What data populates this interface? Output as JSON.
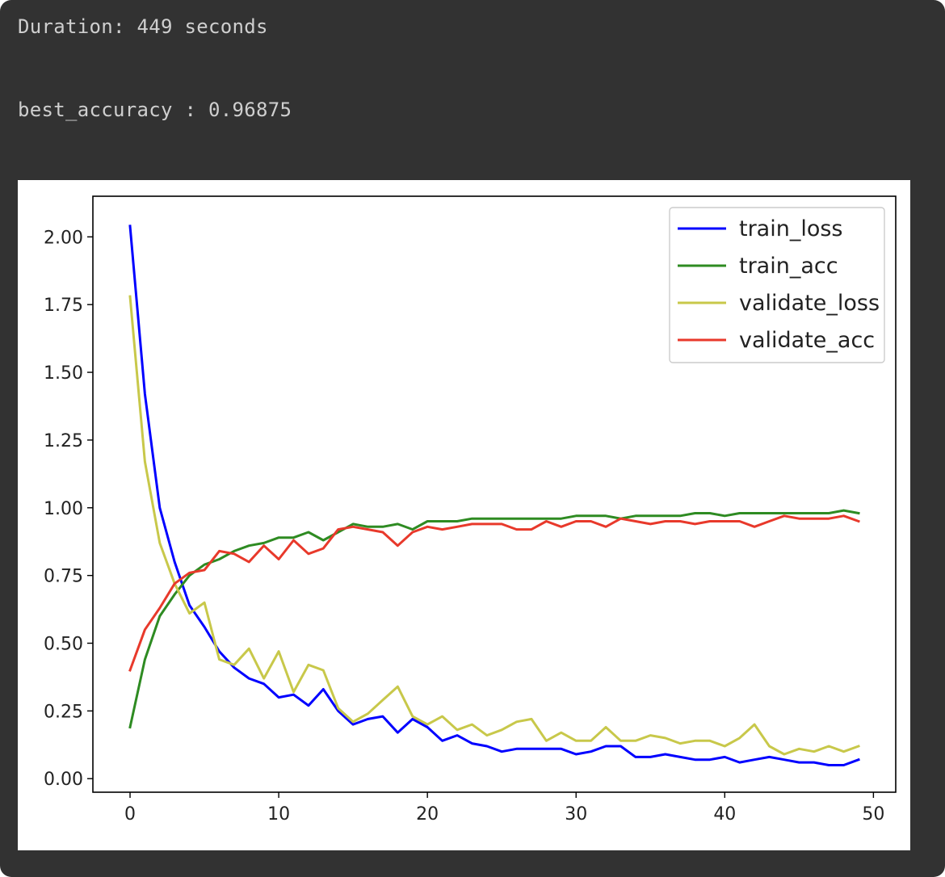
{
  "output": {
    "duration_line": "Duration: 449 seconds",
    "best_accuracy_line": "best_accuracy : 0.96875"
  },
  "chart_data": {
    "type": "line",
    "title": "",
    "xlabel": "",
    "ylabel": "",
    "xlim": [
      -2.5,
      51.5
    ],
    "ylim": [
      -0.05,
      2.15
    ],
    "xticks": [
      0,
      10,
      20,
      30,
      40,
      50
    ],
    "yticks": [
      0.0,
      0.25,
      0.5,
      0.75,
      1.0,
      1.25,
      1.5,
      1.75,
      2.0
    ],
    "xtick_labels": [
      "0",
      "10",
      "20",
      "30",
      "40",
      "50"
    ],
    "ytick_labels": [
      "0.00",
      "0.25",
      "0.50",
      "0.75",
      "1.00",
      "1.25",
      "1.50",
      "1.75",
      "2.00"
    ],
    "grid": false,
    "legend_position": "top-right",
    "x": [
      0,
      1,
      2,
      3,
      4,
      5,
      6,
      7,
      8,
      9,
      10,
      11,
      12,
      13,
      14,
      15,
      16,
      17,
      18,
      19,
      20,
      21,
      22,
      23,
      24,
      25,
      26,
      27,
      28,
      29,
      30,
      31,
      32,
      33,
      34,
      35,
      36,
      37,
      38,
      39,
      40,
      41,
      42,
      43,
      44,
      45,
      46,
      47,
      48,
      49
    ],
    "series": [
      {
        "name": "train_loss",
        "color": "#0000ff",
        "values": [
          2.04,
          1.42,
          1.0,
          0.8,
          0.64,
          0.56,
          0.47,
          0.41,
          0.37,
          0.35,
          0.3,
          0.31,
          0.27,
          0.33,
          0.25,
          0.2,
          0.22,
          0.23,
          0.17,
          0.22,
          0.19,
          0.14,
          0.16,
          0.13,
          0.12,
          0.1,
          0.11,
          0.11,
          0.11,
          0.11,
          0.09,
          0.1,
          0.12,
          0.12,
          0.08,
          0.08,
          0.09,
          0.08,
          0.07,
          0.07,
          0.08,
          0.06,
          0.07,
          0.08,
          0.07,
          0.06,
          0.06,
          0.05,
          0.05,
          0.07
        ]
      },
      {
        "name": "train_acc",
        "color": "#2e8b22",
        "values": [
          0.19,
          0.44,
          0.6,
          0.68,
          0.75,
          0.79,
          0.81,
          0.84,
          0.86,
          0.87,
          0.89,
          0.89,
          0.91,
          0.88,
          0.91,
          0.94,
          0.93,
          0.93,
          0.94,
          0.92,
          0.95,
          0.95,
          0.95,
          0.96,
          0.96,
          0.96,
          0.96,
          0.96,
          0.96,
          0.96,
          0.97,
          0.97,
          0.97,
          0.96,
          0.97,
          0.97,
          0.97,
          0.97,
          0.98,
          0.98,
          0.97,
          0.98,
          0.98,
          0.98,
          0.98,
          0.98,
          0.98,
          0.98,
          0.99,
          0.98
        ]
      },
      {
        "name": "validate_loss",
        "color": "#c8c84a",
        "values": [
          1.78,
          1.17,
          0.87,
          0.72,
          0.61,
          0.65,
          0.44,
          0.42,
          0.48,
          0.37,
          0.47,
          0.32,
          0.42,
          0.4,
          0.26,
          0.21,
          0.24,
          0.29,
          0.34,
          0.23,
          0.2,
          0.23,
          0.18,
          0.2,
          0.16,
          0.18,
          0.21,
          0.22,
          0.14,
          0.17,
          0.14,
          0.14,
          0.19,
          0.14,
          0.14,
          0.16,
          0.15,
          0.13,
          0.14,
          0.14,
          0.12,
          0.15,
          0.2,
          0.12,
          0.09,
          0.11,
          0.1,
          0.12,
          0.1,
          0.12
        ]
      },
      {
        "name": "validate_acc",
        "color": "#e8392b",
        "values": [
          0.4,
          0.55,
          0.63,
          0.72,
          0.76,
          0.77,
          0.84,
          0.83,
          0.8,
          0.86,
          0.81,
          0.88,
          0.83,
          0.85,
          0.92,
          0.93,
          0.92,
          0.91,
          0.86,
          0.91,
          0.93,
          0.92,
          0.93,
          0.94,
          0.94,
          0.94,
          0.92,
          0.92,
          0.95,
          0.93,
          0.95,
          0.95,
          0.93,
          0.96,
          0.95,
          0.94,
          0.95,
          0.95,
          0.94,
          0.95,
          0.95,
          0.95,
          0.93,
          0.95,
          0.97,
          0.96,
          0.96,
          0.96,
          0.97,
          0.95
        ]
      }
    ]
  }
}
